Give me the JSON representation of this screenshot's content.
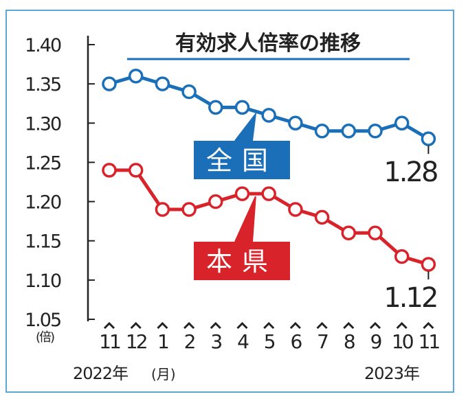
{
  "chart_data": {
    "type": "line",
    "title": "有効求人倍率の推移",
    "ylabel": "(倍)",
    "xlabel": "(月)",
    "ylim": [
      1.05,
      1.4
    ],
    "yticks": [
      "1.40",
      "1.35",
      "1.30",
      "1.25",
      "1.20",
      "1.15",
      "1.10",
      "1.05"
    ],
    "categories": [
      "11",
      "12",
      "1",
      "2",
      "3",
      "4",
      "5",
      "6",
      "7",
      "8",
      "9",
      "10",
      "11"
    ],
    "year_start": "2022年",
    "year_end": "2023年",
    "series": [
      {
        "name": "全国",
        "color": "#1a6fb8",
        "values": [
          1.35,
          1.36,
          1.35,
          1.34,
          1.32,
          1.32,
          1.31,
          1.3,
          1.29,
          1.29,
          1.29,
          1.3,
          1.28
        ],
        "end_label": "1.28"
      },
      {
        "name": "本県",
        "color": "#d9232a",
        "values": [
          1.24,
          1.24,
          1.19,
          1.19,
          1.2,
          1.21,
          1.21,
          1.19,
          1.18,
          1.16,
          1.16,
          1.13,
          1.12
        ],
        "end_label": "1.12"
      }
    ],
    "grid": false,
    "legend": "inline"
  }
}
